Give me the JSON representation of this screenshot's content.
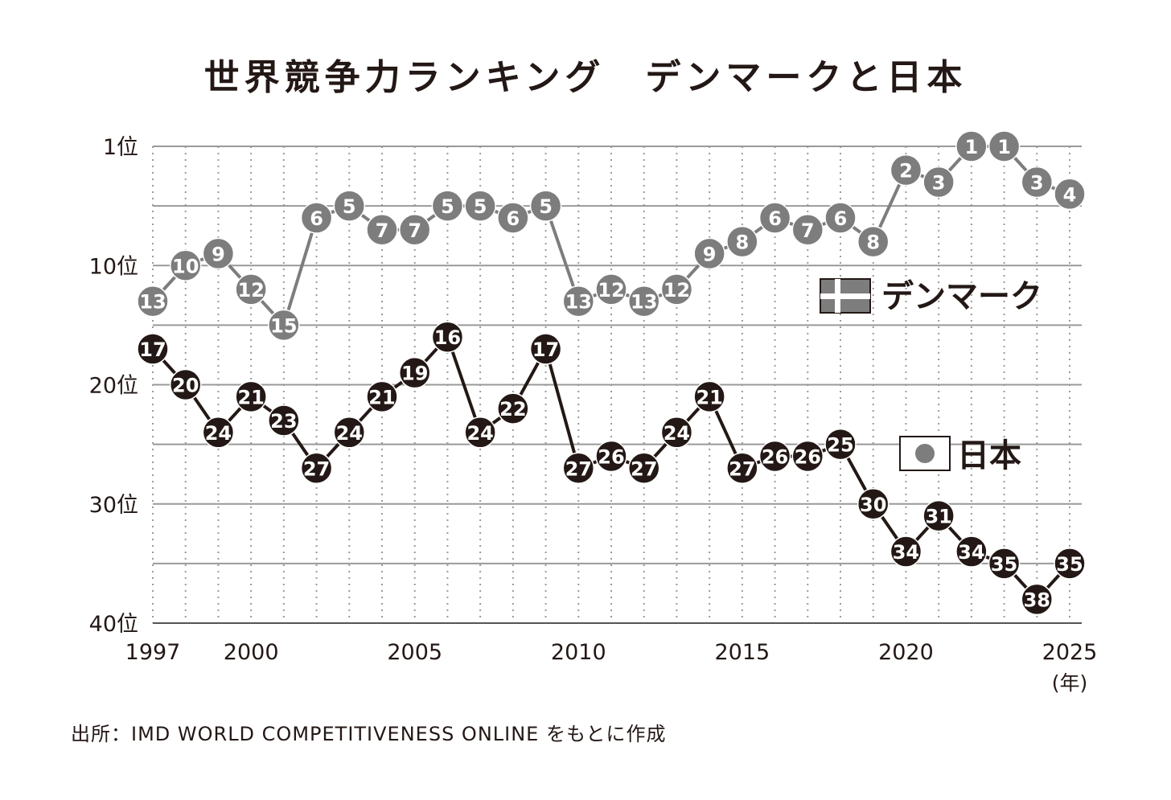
{
  "chart_data": {
    "type": "line",
    "title": "世界競争力ランキング　デンマークと日本",
    "x": [
      1997,
      1998,
      1999,
      2000,
      2001,
      2002,
      2003,
      2004,
      2005,
      2006,
      2007,
      2008,
      2009,
      2010,
      2011,
      2012,
      2013,
      2014,
      2015,
      2016,
      2017,
      2018,
      2019,
      2020,
      2021,
      2022,
      2023,
      2024,
      2025
    ],
    "x_tick_labels": [
      "1997",
      "2000",
      "2005",
      "2010",
      "2015",
      "2020",
      "2025"
    ],
    "x_ticks": [
      1997,
      2000,
      2005,
      2010,
      2015,
      2020,
      2025
    ],
    "xlabel": "(年)",
    "y_tick_labels": [
      "1位",
      "10位",
      "20位",
      "30位",
      "40位"
    ],
    "y_ticks": [
      1,
      10,
      20,
      30,
      40
    ],
    "ylim": [
      1,
      40
    ],
    "y_inverted": true,
    "grid": true,
    "legend_placement": "right",
    "series": [
      {
        "name": "デンマーク",
        "color": "#7d7d7d",
        "values": [
          13,
          10,
          9,
          12,
          15,
          6,
          5,
          7,
          7,
          5,
          5,
          6,
          5,
          13,
          12,
          13,
          12,
          9,
          8,
          6,
          7,
          6,
          8,
          2,
          3,
          1,
          1,
          3,
          4
        ]
      },
      {
        "name": "日本",
        "color": "#231815",
        "values": [
          17,
          20,
          24,
          21,
          23,
          27,
          24,
          21,
          19,
          16,
          24,
          22,
          17,
          27,
          26,
          27,
          24,
          21,
          27,
          26,
          26,
          25,
          30,
          34,
          31,
          34,
          35,
          38,
          35
        ]
      }
    ]
  },
  "source": "出所：IMD WORLD COMPETITIVENESS ONLINE をもとに作成"
}
